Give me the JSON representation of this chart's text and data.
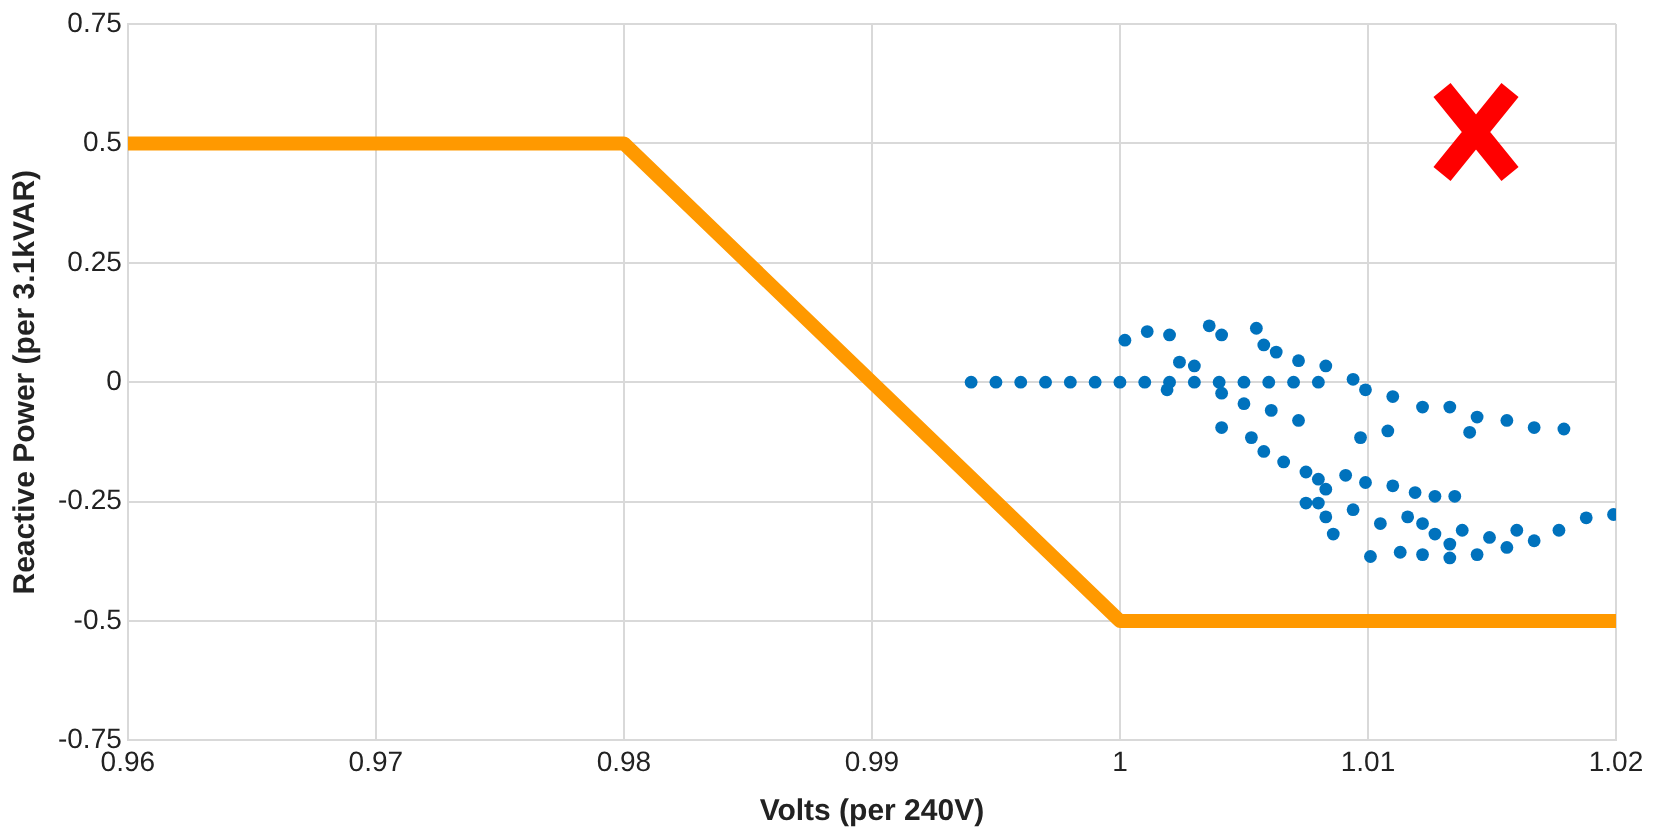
{
  "chart_data": {
    "type": "scatter",
    "xlabel": "Volts (per 240V)",
    "ylabel": "Reactive Power (per 3.1kVAR)",
    "xlim": [
      0.96,
      1.02
    ],
    "ylim": [
      -0.75,
      0.75
    ],
    "xticks": [
      0.96,
      0.97,
      0.98,
      0.99,
      1,
      1.01,
      1.02
    ],
    "yticks": [
      -0.75,
      -0.5,
      -0.25,
      0,
      0.25,
      0.5,
      0.75
    ],
    "grid": true,
    "legend": false,
    "series": [
      {
        "type": "line",
        "color": "#ff9900",
        "marker": "none",
        "line_style": "solid",
        "x": [
          0.96,
          0.98,
          1.0,
          1.02
        ],
        "values": [
          0.5,
          0.5,
          -0.5,
          -0.5
        ]
      },
      {
        "type": "scatter",
        "color": "#0072bd",
        "marker": "circle",
        "x": [
          0.994,
          0.995,
          0.996,
          0.997,
          0.998,
          0.999,
          1.0,
          1.001,
          1.002,
          1.003,
          1.004,
          1.005,
          1.006,
          1.007,
          1.008,
          1.0002,
          1.0011,
          1.002,
          1.0036,
          1.0041,
          1.0055,
          1.0058,
          1.0063,
          1.0072,
          1.0083,
          1.0024,
          1.003,
          1.0094,
          1.0099,
          1.011,
          1.0122,
          1.0133,
          1.0144,
          1.0156,
          1.0167,
          1.0179,
          1.0141,
          1.0108,
          1.0097,
          1.0019,
          1.0041,
          1.005,
          1.0061,
          1.0072,
          1.0041,
          1.0053,
          1.0058,
          1.0066,
          1.0075,
          1.008,
          1.0083,
          1.0075,
          1.0083,
          1.0091,
          1.0099,
          1.011,
          1.0119,
          1.0127,
          1.0135,
          1.0094,
          1.0105,
          1.0116,
          1.0101,
          1.0113,
          1.0122,
          1.0133,
          1.0144,
          1.0156,
          1.0167,
          1.0177,
          1.0188,
          1.0199,
          1.0127,
          1.0138,
          1.0149,
          1.016,
          1.0122,
          1.0133,
          1.0086,
          1.008
        ],
        "values": [
          0,
          0,
          0,
          0,
          0,
          0,
          0,
          0,
          0,
          0,
          0,
          0,
          0,
          0,
          0,
          0.088,
          0.106,
          0.099,
          0.118,
          0.099,
          0.113,
          0.078,
          0.063,
          0.045,
          0.034,
          0.042,
          0.034,
          0.006,
          -0.016,
          -0.03,
          -0.052,
          -0.052,
          -0.073,
          -0.08,
          -0.095,
          -0.098,
          -0.105,
          -0.102,
          -0.116,
          -0.016,
          -0.023,
          -0.045,
          -0.059,
          -0.08,
          -0.095,
          -0.116,
          -0.145,
          -0.167,
          -0.188,
          -0.203,
          -0.224,
          -0.253,
          -0.282,
          -0.195,
          -0.21,
          -0.217,
          -0.231,
          -0.239,
          -0.239,
          -0.267,
          -0.296,
          -0.282,
          -0.365,
          -0.356,
          -0.361,
          -0.368,
          -0.361,
          -0.346,
          -0.332,
          -0.31,
          -0.284,
          -0.277,
          -0.318,
          -0.31,
          -0.325,
          -0.31,
          -0.296,
          -0.339,
          -0.318,
          -0.253
        ]
      }
    ]
  }
}
